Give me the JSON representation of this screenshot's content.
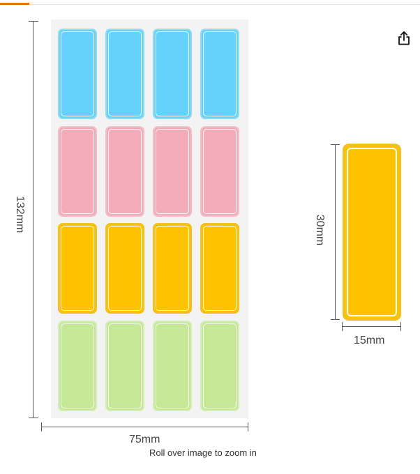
{
  "icons": {
    "share": "share-icon"
  },
  "colors": {
    "blue": "#66d1fb",
    "blue_border": "#8fdcec",
    "pink": "#f4abb9",
    "pink_border": "#f0c0c8",
    "yellow": "#fdc202",
    "yellow_border": "#f1c022",
    "green": "#c4e896",
    "green_border": "#d3eeb5",
    "tab_accent": "#e77600"
  },
  "sheet": {
    "rows": [
      {
        "color": "blue",
        "count": 4
      },
      {
        "color": "pink",
        "count": 4
      },
      {
        "color": "yellow",
        "count": 4
      },
      {
        "color": "green",
        "count": 4
      }
    ],
    "height_label": "132mm",
    "width_label": "75mm"
  },
  "single_label": {
    "color": "yellow",
    "height_label": "30mm",
    "width_label": "15mm"
  },
  "zoom_hint": "Roll over image to zoom in"
}
